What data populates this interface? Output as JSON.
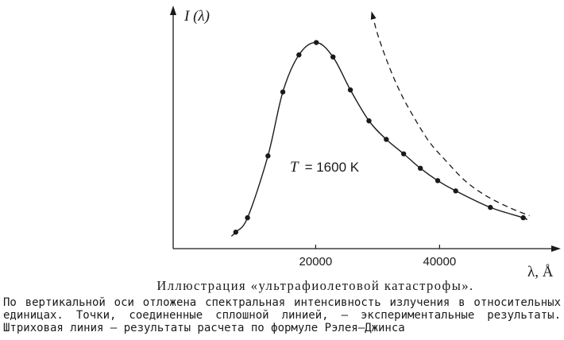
{
  "colors": {
    "ink": "#1a1a1a",
    "paper": "#ffffff"
  },
  "chart_data": {
    "type": "line",
    "xlabel": "λ, Å",
    "ylabel": "I (λ)",
    "xlim": [
      -3000,
      58800
    ],
    "ylim": [
      0,
      1.16
    ],
    "xticks": [
      20000,
      40000
    ],
    "xtick_labels": [
      "20000",
      "40000"
    ],
    "grid": false,
    "annotation": {
      "var": "T",
      "text": "= 1600 K"
    },
    "series": [
      {
        "style": "markers",
        "x": [
          7100,
          9000,
          12300,
          14700,
          17300,
          20100,
          22800,
          25600,
          28600,
          31400,
          34200,
          36900,
          39700,
          42600,
          48200,
          53500
        ],
        "y": [
          0.08,
          0.15,
          0.45,
          0.76,
          0.94,
          1.0,
          0.93,
          0.77,
          0.62,
          0.53,
          0.46,
          0.39,
          0.33,
          0.28,
          0.2,
          0.15
        ]
      },
      {
        "style": "solid",
        "x": [
          6400,
          7100,
          9000,
          12300,
          14700,
          17300,
          20100,
          22800,
          25600,
          28600,
          31400,
          34200,
          36900,
          39700,
          42600,
          48200,
          53500,
          54000
        ],
        "y": [
          0.06,
          0.08,
          0.15,
          0.45,
          0.76,
          0.94,
          1.0,
          0.93,
          0.77,
          0.62,
          0.53,
          0.46,
          0.39,
          0.33,
          0.28,
          0.2,
          0.15,
          0.14
        ]
      },
      {
        "style": "dashed",
        "x": [
          29100,
          30100,
          31900,
          33800,
          35800,
          38300,
          40900,
          44100,
          47300,
          51200,
          54500
        ],
        "y": [
          1.14,
          1.03,
          0.88,
          0.75,
          0.64,
          0.52,
          0.43,
          0.33,
          0.26,
          0.2,
          0.16
        ]
      }
    ]
  },
  "figure": {
    "caption": "Иллюстрация «ультрафиолетовой катастрофы».",
    "description_lines": [
      "По вертикальной оси отложена спектральная интенсивность излучения в относительных",
      "единицах. Точки, соединенные сплошной линией, — экспериментальные результаты.",
      "Штриховая линия — результаты расчета по формуле Рэлея–Джинса"
    ]
  }
}
